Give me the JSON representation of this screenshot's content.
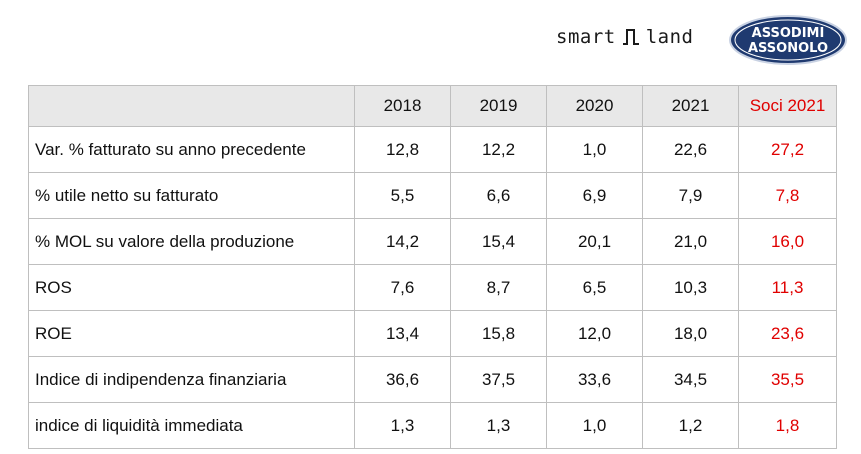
{
  "header": {
    "smart_left": "smart",
    "smart_right": "land",
    "logo_line1": "ASSODIMI",
    "logo_line2": "ASSONOLO"
  },
  "colors": {
    "accent_red": "#e00000",
    "header_bg": "#e8e8e8",
    "logo_blue": "#1f3a70",
    "border": "#bfbfbf"
  },
  "table": {
    "columns": [
      "",
      "2018",
      "2019",
      "2020",
      "2021",
      "Soci 2021"
    ],
    "rows": [
      {
        "label": "Var. % fatturato su anno precedente",
        "values": [
          "12,8",
          "12,2",
          "1,0",
          "22,6",
          "27,2"
        ]
      },
      {
        "label": "% utile netto su fatturato",
        "values": [
          "5,5",
          "6,6",
          "6,9",
          "7,9",
          "7,8"
        ]
      },
      {
        "label": "% MOL su valore della produzione",
        "values": [
          "14,2",
          "15,4",
          "20,1",
          "21,0",
          "16,0"
        ]
      },
      {
        "label": "ROS",
        "values": [
          "7,6",
          "8,7",
          "6,5",
          "10,3",
          "11,3"
        ]
      },
      {
        "label": "ROE",
        "values": [
          "13,4",
          "15,8",
          "12,0",
          "18,0",
          "23,6"
        ]
      },
      {
        "label": "Indice di indipendenza finanziaria",
        "values": [
          "36,6",
          "37,5",
          "33,6",
          "34,5",
          "35,5"
        ]
      },
      {
        "label": "indice di liquidità immediata",
        "values": [
          "1,3",
          "1,3",
          "1,0",
          "1,2",
          "1,8"
        ]
      }
    ]
  }
}
